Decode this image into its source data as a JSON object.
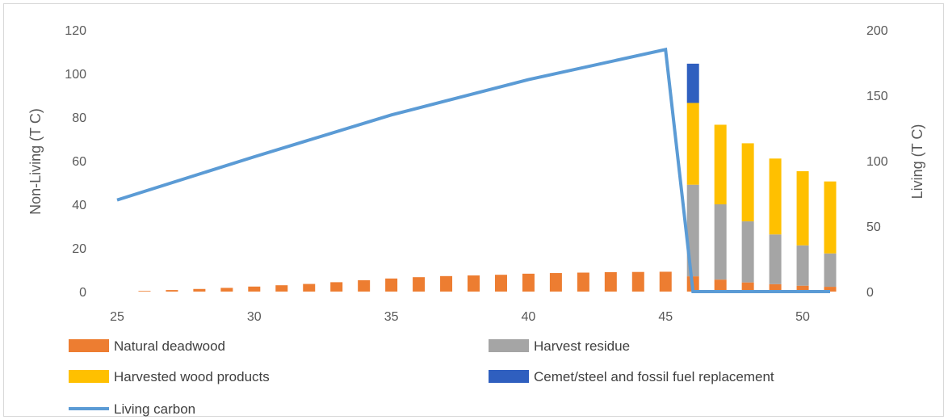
{
  "chart_data": {
    "type": "bar",
    "stacked": true,
    "x": [
      25,
      26,
      27,
      28,
      29,
      30,
      31,
      32,
      33,
      34,
      35,
      36,
      37,
      38,
      39,
      40,
      41,
      42,
      43,
      44,
      45,
      46,
      47,
      48,
      49,
      50,
      51
    ],
    "x_ticks": [
      "25",
      "30",
      "35",
      "40",
      "45",
      "50"
    ],
    "xlim": [
      25,
      51.5
    ],
    "ylabel_left": "Non-Living (T C)",
    "ylabel_right": "Living (T C)",
    "ylim_left": [
      0,
      120
    ],
    "ylim_right": [
      0,
      200
    ],
    "y_ticks_left": [
      "0",
      "20",
      "40",
      "60",
      "80",
      "100",
      "120"
    ],
    "y_ticks_right": [
      "0",
      "50",
      "100",
      "150",
      "200"
    ],
    "grid": false,
    "legend_position": "bottom",
    "series": [
      {
        "name": "Natural deadwood",
        "color": "#ED7D31",
        "axis": "left",
        "kind": "bar",
        "values": [
          0,
          0.3,
          0.7,
          1.2,
          1.7,
          2.3,
          2.9,
          3.5,
          4.3,
          5.2,
          6.0,
          6.6,
          7.1,
          7.4,
          7.7,
          8.2,
          8.5,
          8.7,
          8.9,
          9.0,
          9.1,
          7.0,
          5.5,
          4.2,
          3.4,
          2.7,
          2.2
        ]
      },
      {
        "name": "Harvest residue",
        "color": "#A5A5A5",
        "axis": "left",
        "kind": "bar",
        "values": [
          0,
          0,
          0,
          0,
          0,
          0,
          0,
          0,
          0,
          0,
          0,
          0,
          0,
          0,
          0,
          0,
          0,
          0,
          0,
          0,
          0,
          42,
          34.5,
          28,
          22.8,
          18.5,
          15.3
        ]
      },
      {
        "name": "Harvested wood products",
        "color": "#FFC000",
        "axis": "left",
        "kind": "bar",
        "values": [
          0,
          0,
          0,
          0,
          0,
          0,
          0,
          0,
          0,
          0,
          0,
          0,
          0,
          0,
          0,
          0,
          0,
          0,
          0,
          0,
          0,
          37.5,
          36.5,
          35.8,
          34.8,
          34.0,
          33.0
        ]
      },
      {
        "name": "Cemet/steel  and fossil fuel replacement",
        "color": "#2F5FBF",
        "axis": "left",
        "kind": "bar",
        "values": [
          0,
          0,
          0,
          0,
          0,
          0,
          0,
          0,
          0,
          0,
          0,
          0,
          0,
          0,
          0,
          0,
          0,
          0,
          0,
          0,
          0,
          18,
          0,
          0,
          0,
          0,
          0
        ]
      },
      {
        "name": "Living carbon",
        "color": "#5B9BD5",
        "axis": "right",
        "kind": "line",
        "x": [
          25,
          30,
          35,
          40,
          45,
          46,
          47,
          48,
          49,
          50,
          51
        ],
        "values": [
          70,
          103,
          135,
          162,
          185,
          0,
          0,
          0,
          0,
          0,
          0
        ]
      }
    ]
  }
}
